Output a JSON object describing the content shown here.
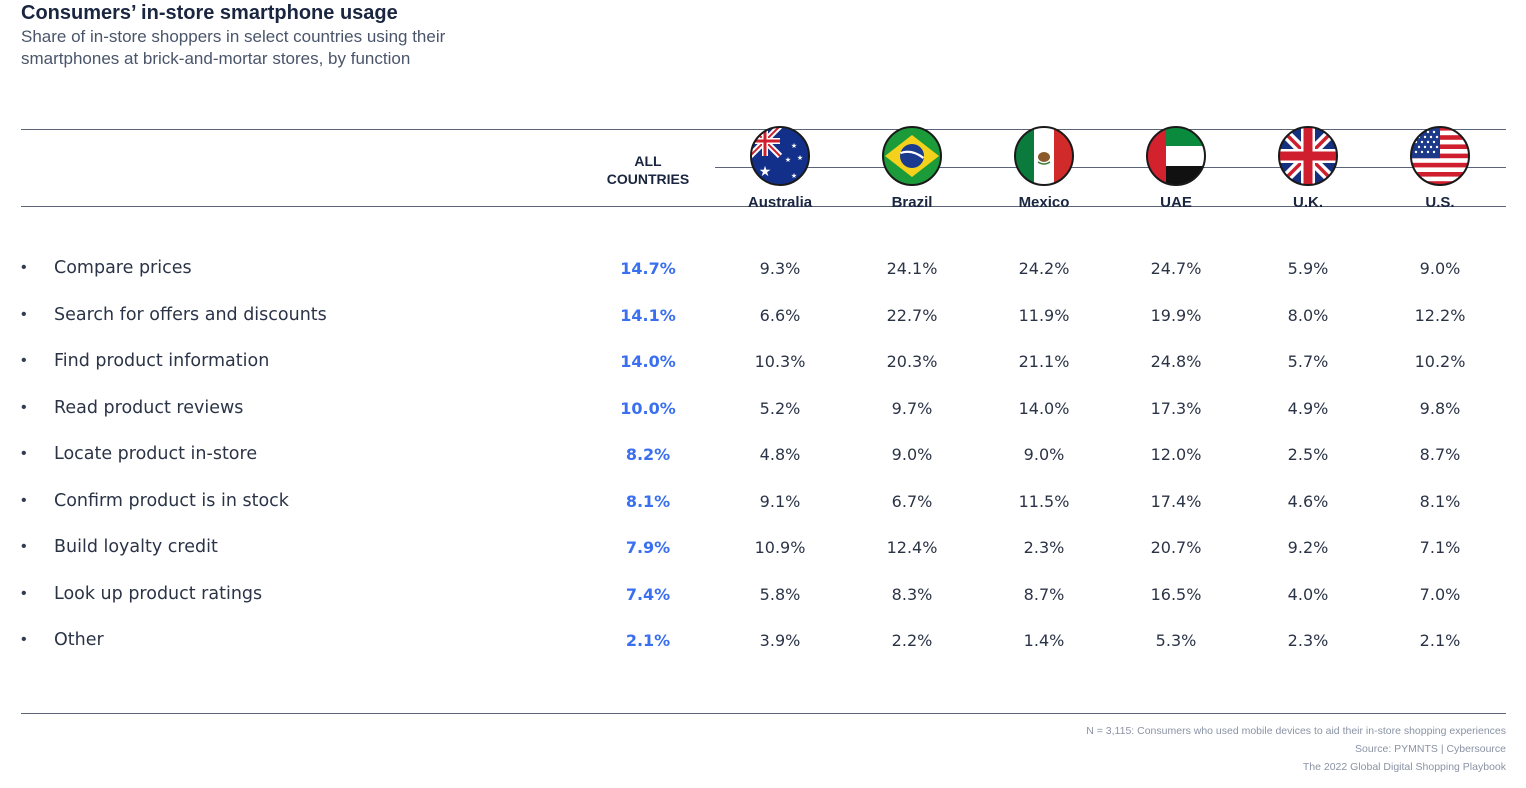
{
  "chart_data": {
    "type": "table",
    "title": "Consumers’ in-store smartphone usage",
    "subtitle": "Share of in-store shoppers in select countries using their smartphones at brick-and-mortar stores, by function",
    "columns": [
      "ALL COUNTRIES",
      "Australia",
      "Brazil",
      "Mexico",
      "UAE",
      "U.K.",
      "U.S."
    ],
    "rows": [
      {
        "label": "Compare prices",
        "values": [
          "14.7%",
          "9.3%",
          "24.1%",
          "24.2%",
          "24.7%",
          "5.9%",
          "9.0%"
        ]
      },
      {
        "label": "Search for offers and discounts",
        "values": [
          "14.1%",
          "6.6%",
          "22.7%",
          "11.9%",
          "19.9%",
          "8.0%",
          "12.2%"
        ]
      },
      {
        "label": "Find product information",
        "values": [
          "14.0%",
          "10.3%",
          "20.3%",
          "21.1%",
          "24.8%",
          "5.7%",
          "10.2%"
        ]
      },
      {
        "label": "Read product reviews",
        "values": [
          "10.0%",
          "5.2%",
          "9.7%",
          "14.0%",
          "17.3%",
          "4.9%",
          "9.8%"
        ]
      },
      {
        "label": "Locate product in-store",
        "values": [
          "8.2%",
          "4.8%",
          "9.0%",
          "9.0%",
          "12.0%",
          "2.5%",
          "8.7%"
        ]
      },
      {
        "label": "Confirm product is in stock",
        "values": [
          "8.1%",
          "9.1%",
          "6.7%",
          "11.5%",
          "17.4%",
          "4.6%",
          "8.1%"
        ]
      },
      {
        "label": "Build loyalty credit",
        "values": [
          "7.9%",
          "10.9%",
          "12.4%",
          "2.3%",
          "20.7%",
          "9.2%",
          "7.1%"
        ]
      },
      {
        "label": "Look up product ratings",
        "values": [
          "7.4%",
          "5.8%",
          "8.3%",
          "8.7%",
          "16.5%",
          "4.0%",
          "7.0%"
        ]
      },
      {
        "label": "Other",
        "values": [
          "2.1%",
          "3.9%",
          "2.2%",
          "1.4%",
          "5.3%",
          "2.3%",
          "2.1%"
        ]
      }
    ],
    "highlight_color": "#3a6ff0"
  },
  "header": {
    "all_line1": "ALL",
    "all_line2": "COUNTRIES",
    "countries": [
      {
        "name": "Australia",
        "flag": "australia-flag-icon"
      },
      {
        "name": "Brazil",
        "flag": "brazil-flag-icon"
      },
      {
        "name": "Mexico",
        "flag": "mexico-flag-icon"
      },
      {
        "name": "UAE",
        "flag": "uae-flag-icon"
      },
      {
        "name": "U.K.",
        "flag": "uk-flag-icon"
      },
      {
        "name": "U.S.",
        "flag": "us-flag-icon"
      }
    ]
  },
  "bullet": "•",
  "footer": {
    "note": "N = 3,115: Consumers who used mobile devices to aid their in-store shopping experiences",
    "source": "Source:  PYMNTS  |  Cybersource",
    "publication": "The 2022 Global Digital Shopping Playbook"
  }
}
